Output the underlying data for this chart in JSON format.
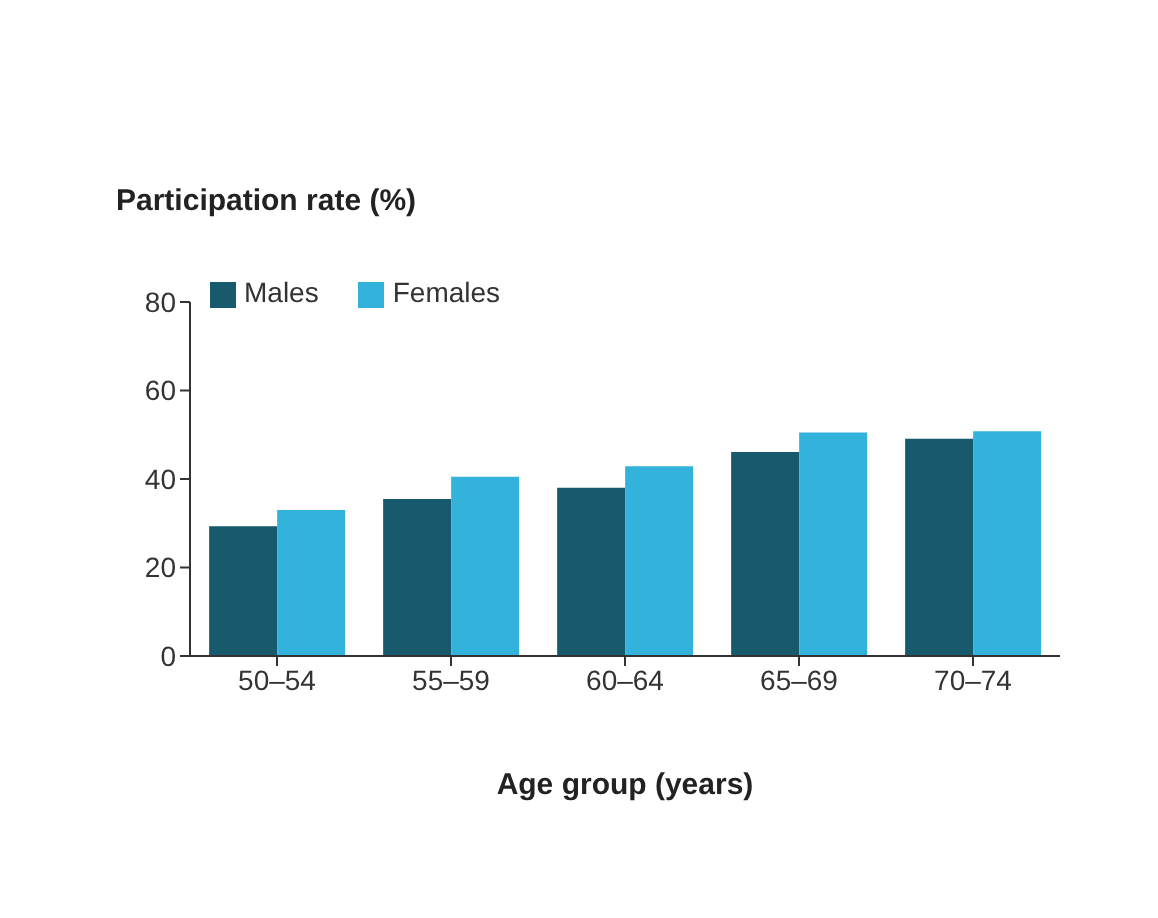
{
  "chart_data": {
    "type": "bar",
    "ylabel": "Participation rate (%)",
    "xlabel": "Age group (years)",
    "categories": [
      "50–54",
      "55–59",
      "60–64",
      "65–69",
      "70–74"
    ],
    "series": [
      {
        "name": "Males",
        "color": "#175a6e",
        "values": [
          29.3,
          35.5,
          38.0,
          46.1,
          49.1
        ]
      },
      {
        "name": "Females",
        "color": "#33b2dc",
        "values": [
          33.0,
          40.5,
          42.9,
          50.5,
          50.8
        ]
      }
    ],
    "ylim": [
      0,
      80
    ],
    "yticks": [
      0,
      20,
      40,
      60,
      80
    ],
    "grid": false,
    "legend": "top left"
  }
}
